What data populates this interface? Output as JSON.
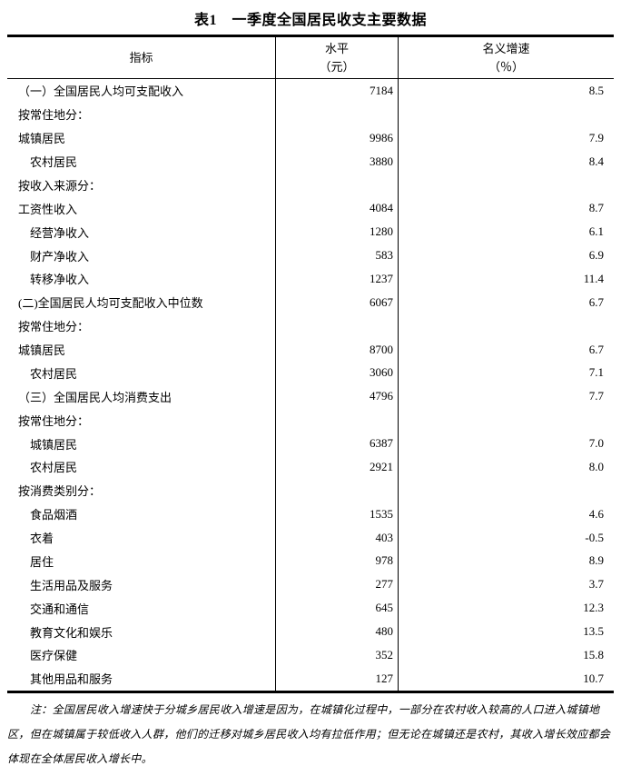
{
  "title": "表1　一季度全国居民收支主要数据",
  "table": {
    "header": {
      "indicator": "指标",
      "level_line1": "水平",
      "level_line2": "（元）",
      "growth_line1": "名义增速",
      "growth_line2": "（％）"
    },
    "rows": [
      {
        "label": "（一）全国居民人均可支配收入",
        "indent": 0,
        "level": "7184",
        "growth": "8.5"
      },
      {
        "label": "按常住地分：",
        "indent": 0,
        "level": "",
        "growth": ""
      },
      {
        "label": "城镇居民",
        "indent": 0,
        "level": "9986",
        "growth": "7.9"
      },
      {
        "label": "农村居民",
        "indent": 1,
        "level": "3880",
        "growth": "8.4"
      },
      {
        "label": "按收入来源分：",
        "indent": 0,
        "level": "",
        "growth": ""
      },
      {
        "label": "工资性收入",
        "indent": 0,
        "level": "4084",
        "growth": "8.7"
      },
      {
        "label": "经营净收入",
        "indent": 1,
        "level": "1280",
        "growth": "6.1"
      },
      {
        "label": "财产净收入",
        "indent": 1,
        "level": "583",
        "growth": "6.9"
      },
      {
        "label": "转移净收入",
        "indent": 1,
        "level": "1237",
        "growth": "11.4"
      },
      {
        "label": "(二)全国居民人均可支配收入中位数",
        "indent": 0,
        "level": "6067",
        "growth": "6.7"
      },
      {
        "label": "按常住地分：",
        "indent": 0,
        "level": "",
        "growth": ""
      },
      {
        "label": "城镇居民",
        "indent": 0,
        "level": "8700",
        "growth": "6.7"
      },
      {
        "label": "农村居民",
        "indent": 1,
        "level": "3060",
        "growth": "7.1"
      },
      {
        "label": "（三）全国居民人均消费支出",
        "indent": 0,
        "level": "4796",
        "growth": "7.7"
      },
      {
        "label": "按常住地分：",
        "indent": 0,
        "level": "",
        "growth": ""
      },
      {
        "label": "城镇居民",
        "indent": 1,
        "level": "6387",
        "growth": "7.0"
      },
      {
        "label": "农村居民",
        "indent": 1,
        "level": "2921",
        "growth": "8.0"
      },
      {
        "label": "按消费类别分：",
        "indent": 0,
        "level": "",
        "growth": ""
      },
      {
        "label": "食品烟酒",
        "indent": 1,
        "level": "1535",
        "growth": "4.6"
      },
      {
        "label": "衣着",
        "indent": 1,
        "level": "403",
        "growth": "-0.5"
      },
      {
        "label": "居住",
        "indent": 1,
        "level": "978",
        "growth": "8.9"
      },
      {
        "label": "生活用品及服务",
        "indent": 1,
        "level": "277",
        "growth": "3.7"
      },
      {
        "label": "交通和通信",
        "indent": 1,
        "level": "645",
        "growth": "12.3"
      },
      {
        "label": "教育文化和娱乐",
        "indent": 1,
        "level": "480",
        "growth": "13.5"
      },
      {
        "label": "医疗保健",
        "indent": 1,
        "level": "352",
        "growth": "15.8"
      },
      {
        "label": "其他用品和服务",
        "indent": 1,
        "level": "127",
        "growth": "10.7"
      }
    ]
  },
  "note": {
    "lines": [
      "注：全国居民收入增速快于分城乡居民收入增速是因为，在城镇化过程中，一部分在农村收入较高的人口进入城镇地",
      "区，但在城镇属于较低收入人群，他们的迁移对城乡居民收入均有拉低作用；但无论在城镇还是农村，其收入增长效应都会",
      "体现在全体居民收入增长中。"
    ]
  },
  "colors": {
    "text": "#000000",
    "border": "#000000",
    "background": "#ffffff"
  },
  "chart_data": {
    "type": "table",
    "title": "表1　一季度全国居民收支主要数据",
    "columns": [
      "指标",
      "水平（元）",
      "名义增速（％）"
    ]
  }
}
